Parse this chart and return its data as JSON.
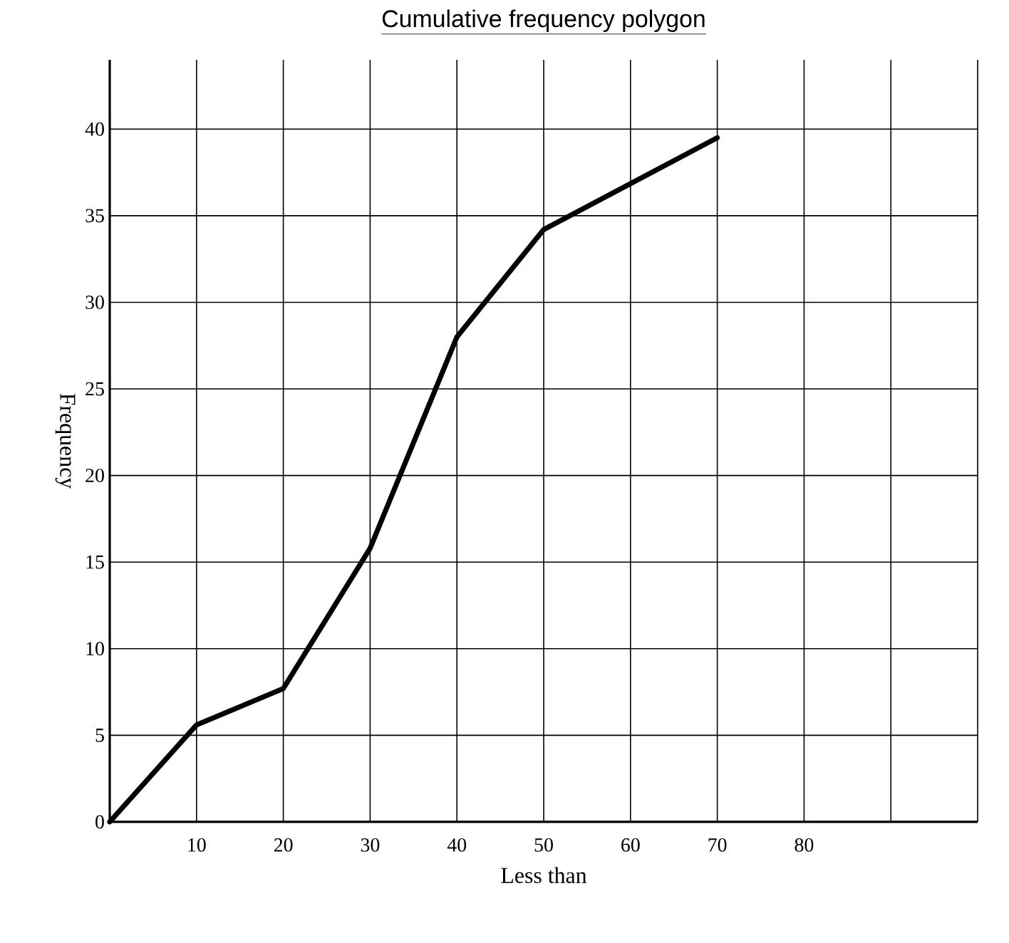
{
  "chart_data": {
    "type": "line",
    "title": "Cumulative frequency polygon",
    "xlabel": "Less than",
    "ylabel": "Frequency",
    "x": [
      0,
      10,
      20,
      30,
      40,
      50,
      70
    ],
    "series": [
      {
        "color": "#000000",
        "values": [
          0,
          5.6,
          7.7,
          15.8,
          28,
          34.2,
          39.5
        ]
      }
    ],
    "xlim": [
      0,
      100
    ],
    "ylim": [
      0,
      44
    ],
    "xticks": [
      10,
      20,
      30,
      40,
      50,
      60,
      70,
      80,
      {
        "value": 90,
        "label": null
      },
      {
        "value": 100,
        "label": null
      }
    ],
    "yticks": [
      0,
      5,
      10,
      15,
      20,
      25,
      30,
      35,
      40
    ],
    "grid": true,
    "marker": "none",
    "line_style": "solid"
  }
}
